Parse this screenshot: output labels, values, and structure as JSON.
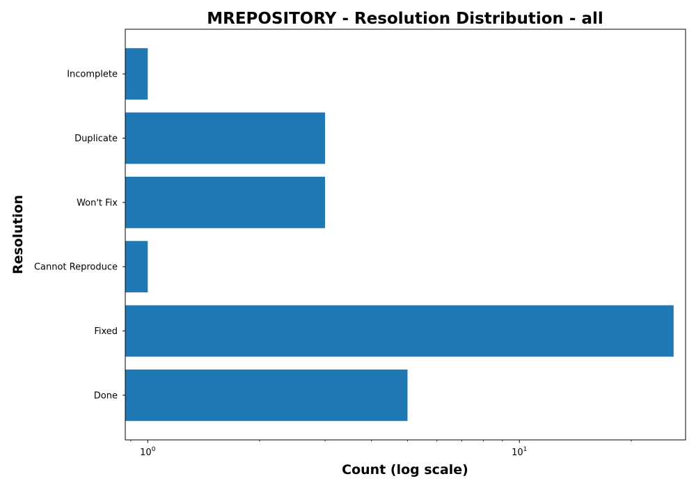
{
  "chart_data": {
    "type": "bar",
    "orientation": "horizontal",
    "title": "MREPOSITORY - Resolution Distribution - all",
    "xlabel": "Count (log scale)",
    "ylabel": "Resolution",
    "x_scale": "log",
    "xlim": [
      0.87,
      28
    ],
    "x_ticks": [
      {
        "value": 1,
        "base": "10",
        "exponent": "0"
      },
      {
        "value": 10,
        "base": "10",
        "exponent": "1"
      }
    ],
    "categories": [
      "Done",
      "Fixed",
      "Cannot Reproduce",
      "Won't Fix",
      "Duplicate",
      "Incomplete"
    ],
    "values": [
      5,
      26,
      1,
      3,
      3,
      1
    ],
    "bar_color": "#1f77b4",
    "grid": false,
    "legend": "none"
  }
}
